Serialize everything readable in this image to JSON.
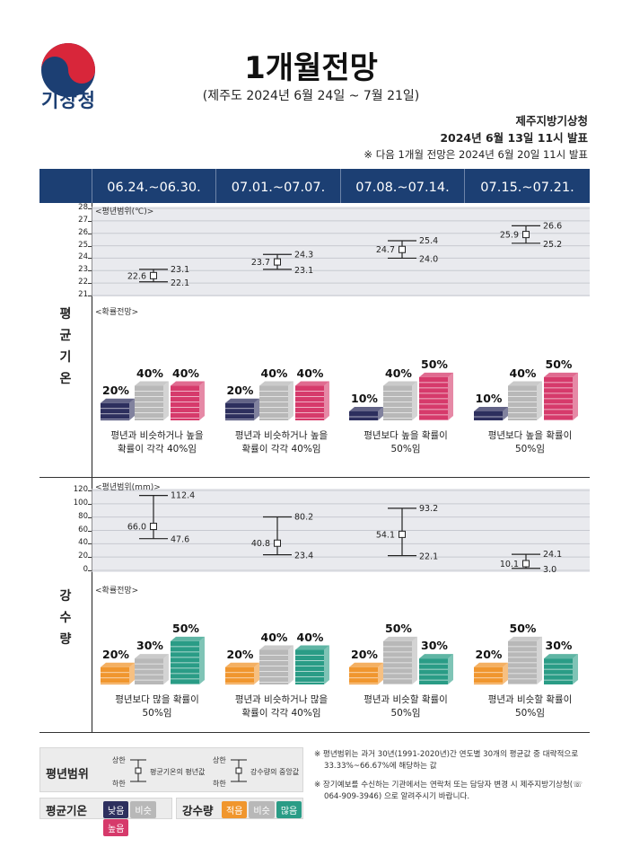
{
  "header": {
    "logo_text": "기상청",
    "title": "1개월전망",
    "subtitle": "(제주도 2024년 6월 24일 ~ 7월 21일)",
    "issuer": "제주지방기상청",
    "issue_time": "2024년 6월 13일 11시 발표",
    "next_issue": "※ 다음 1개월 전망은 2024년 6월 20일 11시 발표"
  },
  "periods": [
    "06.24.~06.30.",
    "07.01.~07.07.",
    "07.08.~07.14.",
    "07.15.~07.21."
  ],
  "temperature": {
    "side_label": "평균기온",
    "range_tag": "<평년범위(℃)>",
    "prob_tag": "<확률전망>",
    "axis": {
      "min": 21,
      "max": 28,
      "ticks": [
        "21",
        "22",
        "23",
        "24",
        "25",
        "26",
        "27",
        "28"
      ]
    },
    "ranges": [
      {
        "mean": "22.6",
        "upper": "23.1",
        "lower": "22.1",
        "mean_v": 22.6,
        "upper_v": 23.1,
        "lower_v": 22.1
      },
      {
        "mean": "23.7",
        "upper": "24.3",
        "lower": "23.1",
        "mean_v": 23.7,
        "upper_v": 24.3,
        "lower_v": 23.1
      },
      {
        "mean": "24.7",
        "upper": "25.4",
        "lower": "24.0",
        "mean_v": 24.7,
        "upper_v": 25.4,
        "lower_v": 24.0
      },
      {
        "mean": "25.9",
        "upper": "26.6",
        "lower": "25.2",
        "mean_v": 25.9,
        "upper_v": 26.6,
        "lower_v": 25.2
      }
    ],
    "probs": [
      {
        "low": "20%",
        "normal": "40%",
        "high": "40%",
        "low_v": 20,
        "normal_v": 40,
        "high_v": 40,
        "text1": "평년과 비슷하거나 높을",
        "text2": "확률이 각각 40%임"
      },
      {
        "low": "20%",
        "normal": "40%",
        "high": "40%",
        "low_v": 20,
        "normal_v": 40,
        "high_v": 40,
        "text1": "평년과 비슷하거나 높을",
        "text2": "확률이 각각 40%임"
      },
      {
        "low": "10%",
        "normal": "40%",
        "high": "50%",
        "low_v": 10,
        "normal_v": 40,
        "high_v": 50,
        "text1": "평년보다 높을 확률이",
        "text2": "50%임"
      },
      {
        "low": "10%",
        "normal": "40%",
        "high": "50%",
        "low_v": 10,
        "normal_v": 40,
        "high_v": 50,
        "text1": "평년보다 높을 확률이",
        "text2": "50%임"
      }
    ]
  },
  "precipitation": {
    "side_label": "강수량",
    "range_tag": "<평년범위(mm)>",
    "prob_tag": "<확률전망>",
    "axis": {
      "min": 0,
      "max": 120,
      "ticks": [
        "0",
        "20",
        "40",
        "60",
        "80",
        "100",
        "120"
      ]
    },
    "ranges": [
      {
        "mean": "66.0",
        "upper": "112.4",
        "lower": "47.6",
        "mean_v": 66.0,
        "upper_v": 112.4,
        "lower_v": 47.6
      },
      {
        "mean": "40.8",
        "upper": "80.2",
        "lower": "23.4",
        "mean_v": 40.8,
        "upper_v": 80.2,
        "lower_v": 23.4
      },
      {
        "mean": "54.1",
        "upper": "93.2",
        "lower": "22.1",
        "mean_v": 54.1,
        "upper_v": 93.2,
        "lower_v": 22.1
      },
      {
        "mean": "10.1",
        "upper": "24.1",
        "lower": "3.0",
        "mean_v": 10.1,
        "upper_v": 24.1,
        "lower_v": 3.0
      }
    ],
    "probs": [
      {
        "low": "20%",
        "normal": "30%",
        "high": "50%",
        "low_v": 20,
        "normal_v": 30,
        "high_v": 50,
        "text1": "평년보다 많을 확률이",
        "text2": "50%임"
      },
      {
        "low": "20%",
        "normal": "40%",
        "high": "40%",
        "low_v": 20,
        "normal_v": 40,
        "high_v": 40,
        "text1": "평년과 비슷하거나 많을",
        "text2": "확률이 각각 40%임"
      },
      {
        "low": "20%",
        "normal": "50%",
        "high": "30%",
        "low_v": 20,
        "normal_v": 50,
        "high_v": 30,
        "text1": "평년과 비슷할 확률이",
        "text2": "50%임"
      },
      {
        "low": "20%",
        "normal": "50%",
        "high": "30%",
        "low_v": 20,
        "normal_v": 50,
        "high_v": 30,
        "text1": "평년과 비슷할 확률이",
        "text2": "50%임"
      }
    ]
  },
  "legend": {
    "range_title": "평년범위",
    "upper": "상한",
    "lower": "하한",
    "temp_mean": "평균기온의 평년값",
    "precip_median": "강수량의 중앙값",
    "temp_title": "평균기온",
    "temp_low": "낮음",
    "temp_normal": "비슷",
    "temp_high": "높음",
    "precip_title": "강수량",
    "precip_low": "적음",
    "precip_normal": "비슷",
    "precip_high": "많음"
  },
  "notes": {
    "note1": "※ 평년범위는 과거 30년(1991-2020년)간 연도별 30개의 평균값 중 대략적으로 33.33%~66.67%에 해당하는 값",
    "note2": "※ 장기예보를 수신하는 기관에서는 연락처 또는 담당자 변경 시 제주지방기상청(☏ 064-909-3946) 으로 알려주시기 바랍니다."
  },
  "colors": {
    "navy": "#1c3f73",
    "temp_low": "#2d2f5e",
    "temp_high": "#d63a6b",
    "normal": "#b8b8b8",
    "precip_low": "#f0962e",
    "precip_high": "#2a9c86"
  }
}
